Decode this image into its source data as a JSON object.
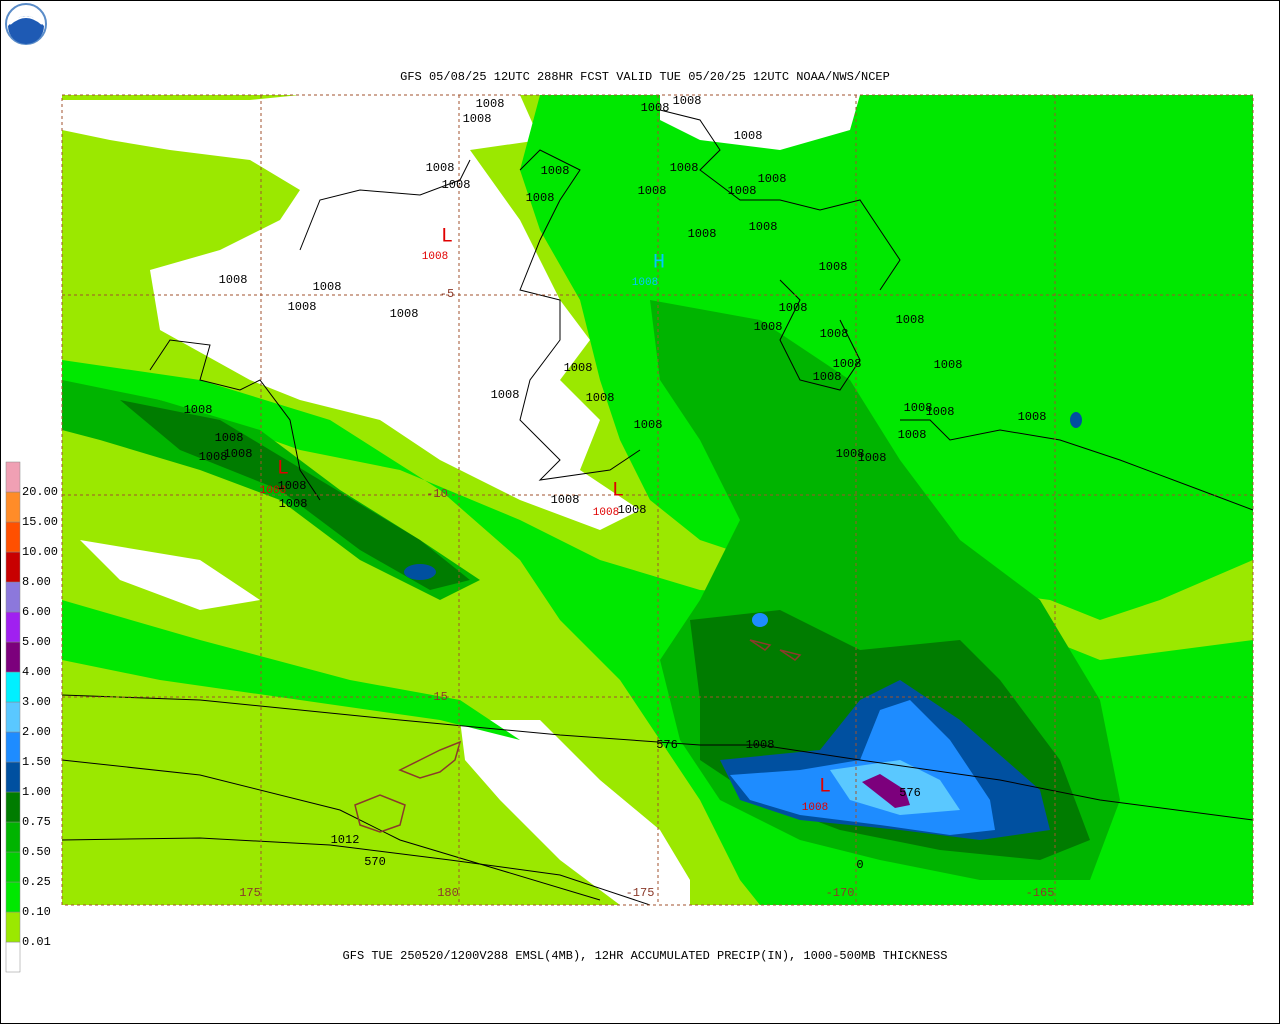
{
  "title": "GFS 05/08/25 12UTC 288HR FCST VALID TUE 05/20/25 12UTC NOAA/NWS/NCEP",
  "caption": "GFS TUE 250520/1200V288 EMSL(4MB), 12HR ACCUMULATED PRECIP(IN), 1000-500MB THICKNESS",
  "legend": {
    "labels": [
      "0.01",
      "0.10",
      "0.25",
      "0.50",
      "0.75",
      "1.00",
      "1.50",
      "2.00",
      "3.00",
      "4.00",
      "5.00",
      "6.00",
      "8.00",
      "10.00",
      "15.00",
      "20.00"
    ],
    "colors": [
      "#ffffff",
      "#9be800",
      "#00e800",
      "#00d000",
      "#00b400",
      "#007c00",
      "#0050a0",
      "#1e8cff",
      "#5ac8ff",
      "#00f0ff",
      "#7c007c",
      "#a020f0",
      "#8c78dc",
      "#c80000",
      "#ff5000",
      "#ff8c28",
      "#f0a0b4"
    ]
  },
  "lon_labels": [
    "175",
    "180",
    "-175",
    "-170",
    "-165"
  ],
  "lat_labels": [
    "-5",
    "-10",
    "-15"
  ],
  "pressure_centers": [
    {
      "symbol": "L",
      "value": "1008"
    },
    {
      "symbol": "H",
      "value": "1008"
    },
    {
      "symbol": "L",
      "value": "1008"
    },
    {
      "symbol": "L",
      "value": "1008"
    },
    {
      "symbol": "L",
      "value": "1008"
    }
  ],
  "contour_labels": [
    "1008",
    "1008",
    "1008",
    "1008",
    "1008",
    "1008",
    "1008",
    "1008",
    "1008",
    "1008",
    "1008",
    "1008",
    "1008",
    "1008",
    "1008",
    "1008",
    "1008",
    "1008",
    "1008",
    "1008",
    "1008",
    "1008",
    "1008",
    "1008",
    "1008",
    "1008",
    "1008",
    "1008",
    "1008",
    "1008",
    "1008",
    "1008",
    "1008",
    "1008",
    "1008",
    "1008",
    "1008",
    "1008",
    "1008",
    "1008",
    "1008",
    "1008",
    "1008",
    "1008",
    "1008",
    "1008",
    "576",
    "576",
    "570",
    "1012",
    "0"
  ]
}
